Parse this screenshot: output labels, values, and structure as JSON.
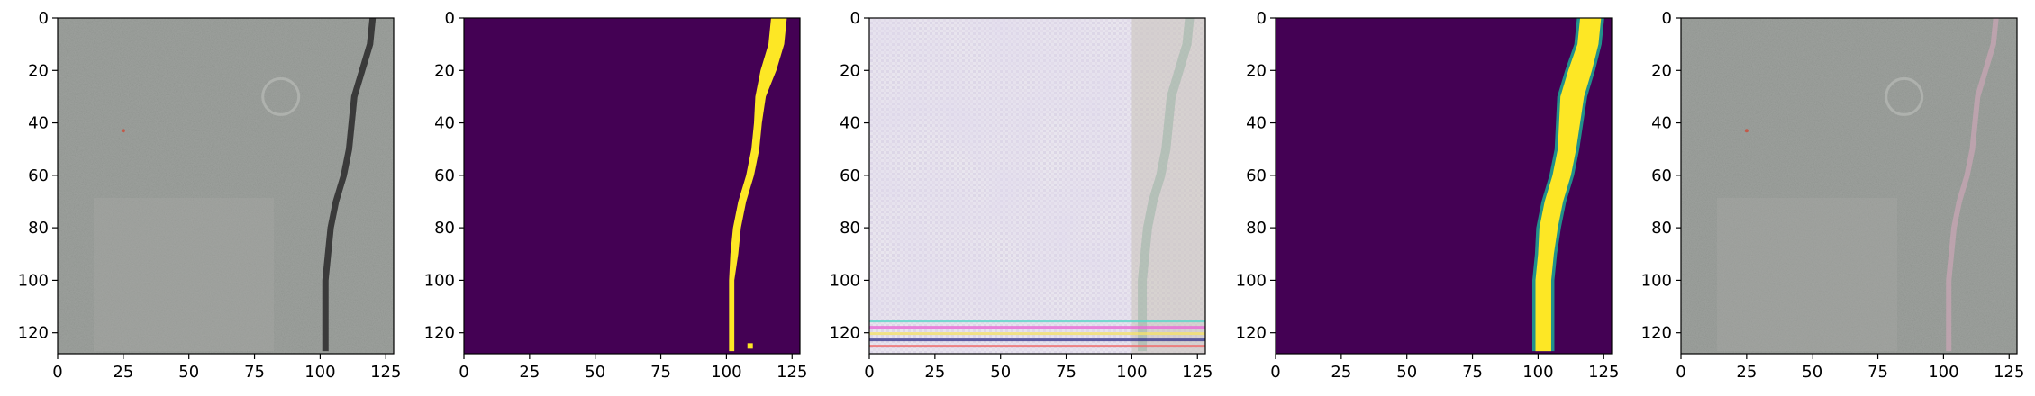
{
  "figure": {
    "panel_count": 5,
    "colors": {
      "background": "#ffffff",
      "axis": "#000000",
      "viridis_low": "#440154",
      "viridis_high": "#fde725",
      "viridis_mid": "#21918c",
      "concrete": "#9ea29e",
      "crack": "#3a3a3a"
    }
  },
  "axes": {
    "x_ticks": [
      "0",
      "25",
      "50",
      "75",
      "100",
      "125"
    ],
    "y_ticks": [
      "0",
      "20",
      "40",
      "60",
      "80",
      "100",
      "120"
    ],
    "x_tick_values": [
      0,
      25,
      50,
      75,
      100,
      125
    ],
    "y_tick_values": [
      0,
      20,
      40,
      60,
      80,
      100,
      120
    ],
    "range": [
      0,
      128
    ]
  },
  "panels": [
    {
      "name": "panel-original-image",
      "kind": "concrete-photo-crack"
    },
    {
      "name": "panel-ground-truth-mask",
      "kind": "binary-mask"
    },
    {
      "name": "panel-reconstruction",
      "kind": "noisy-reconstruction"
    },
    {
      "name": "panel-predicted-mask",
      "kind": "soft-mask"
    },
    {
      "name": "panel-overlay",
      "kind": "concrete-photo-faint-crack"
    }
  ],
  "crack_path": {
    "rows": [
      0,
      10,
      20,
      30,
      40,
      50,
      60,
      70,
      80,
      90,
      100,
      110,
      120,
      127
    ],
    "cols": [
      120,
      119,
      116,
      113,
      112,
      111,
      109,
      106,
      104,
      103,
      102,
      102,
      102,
      102
    ]
  }
}
